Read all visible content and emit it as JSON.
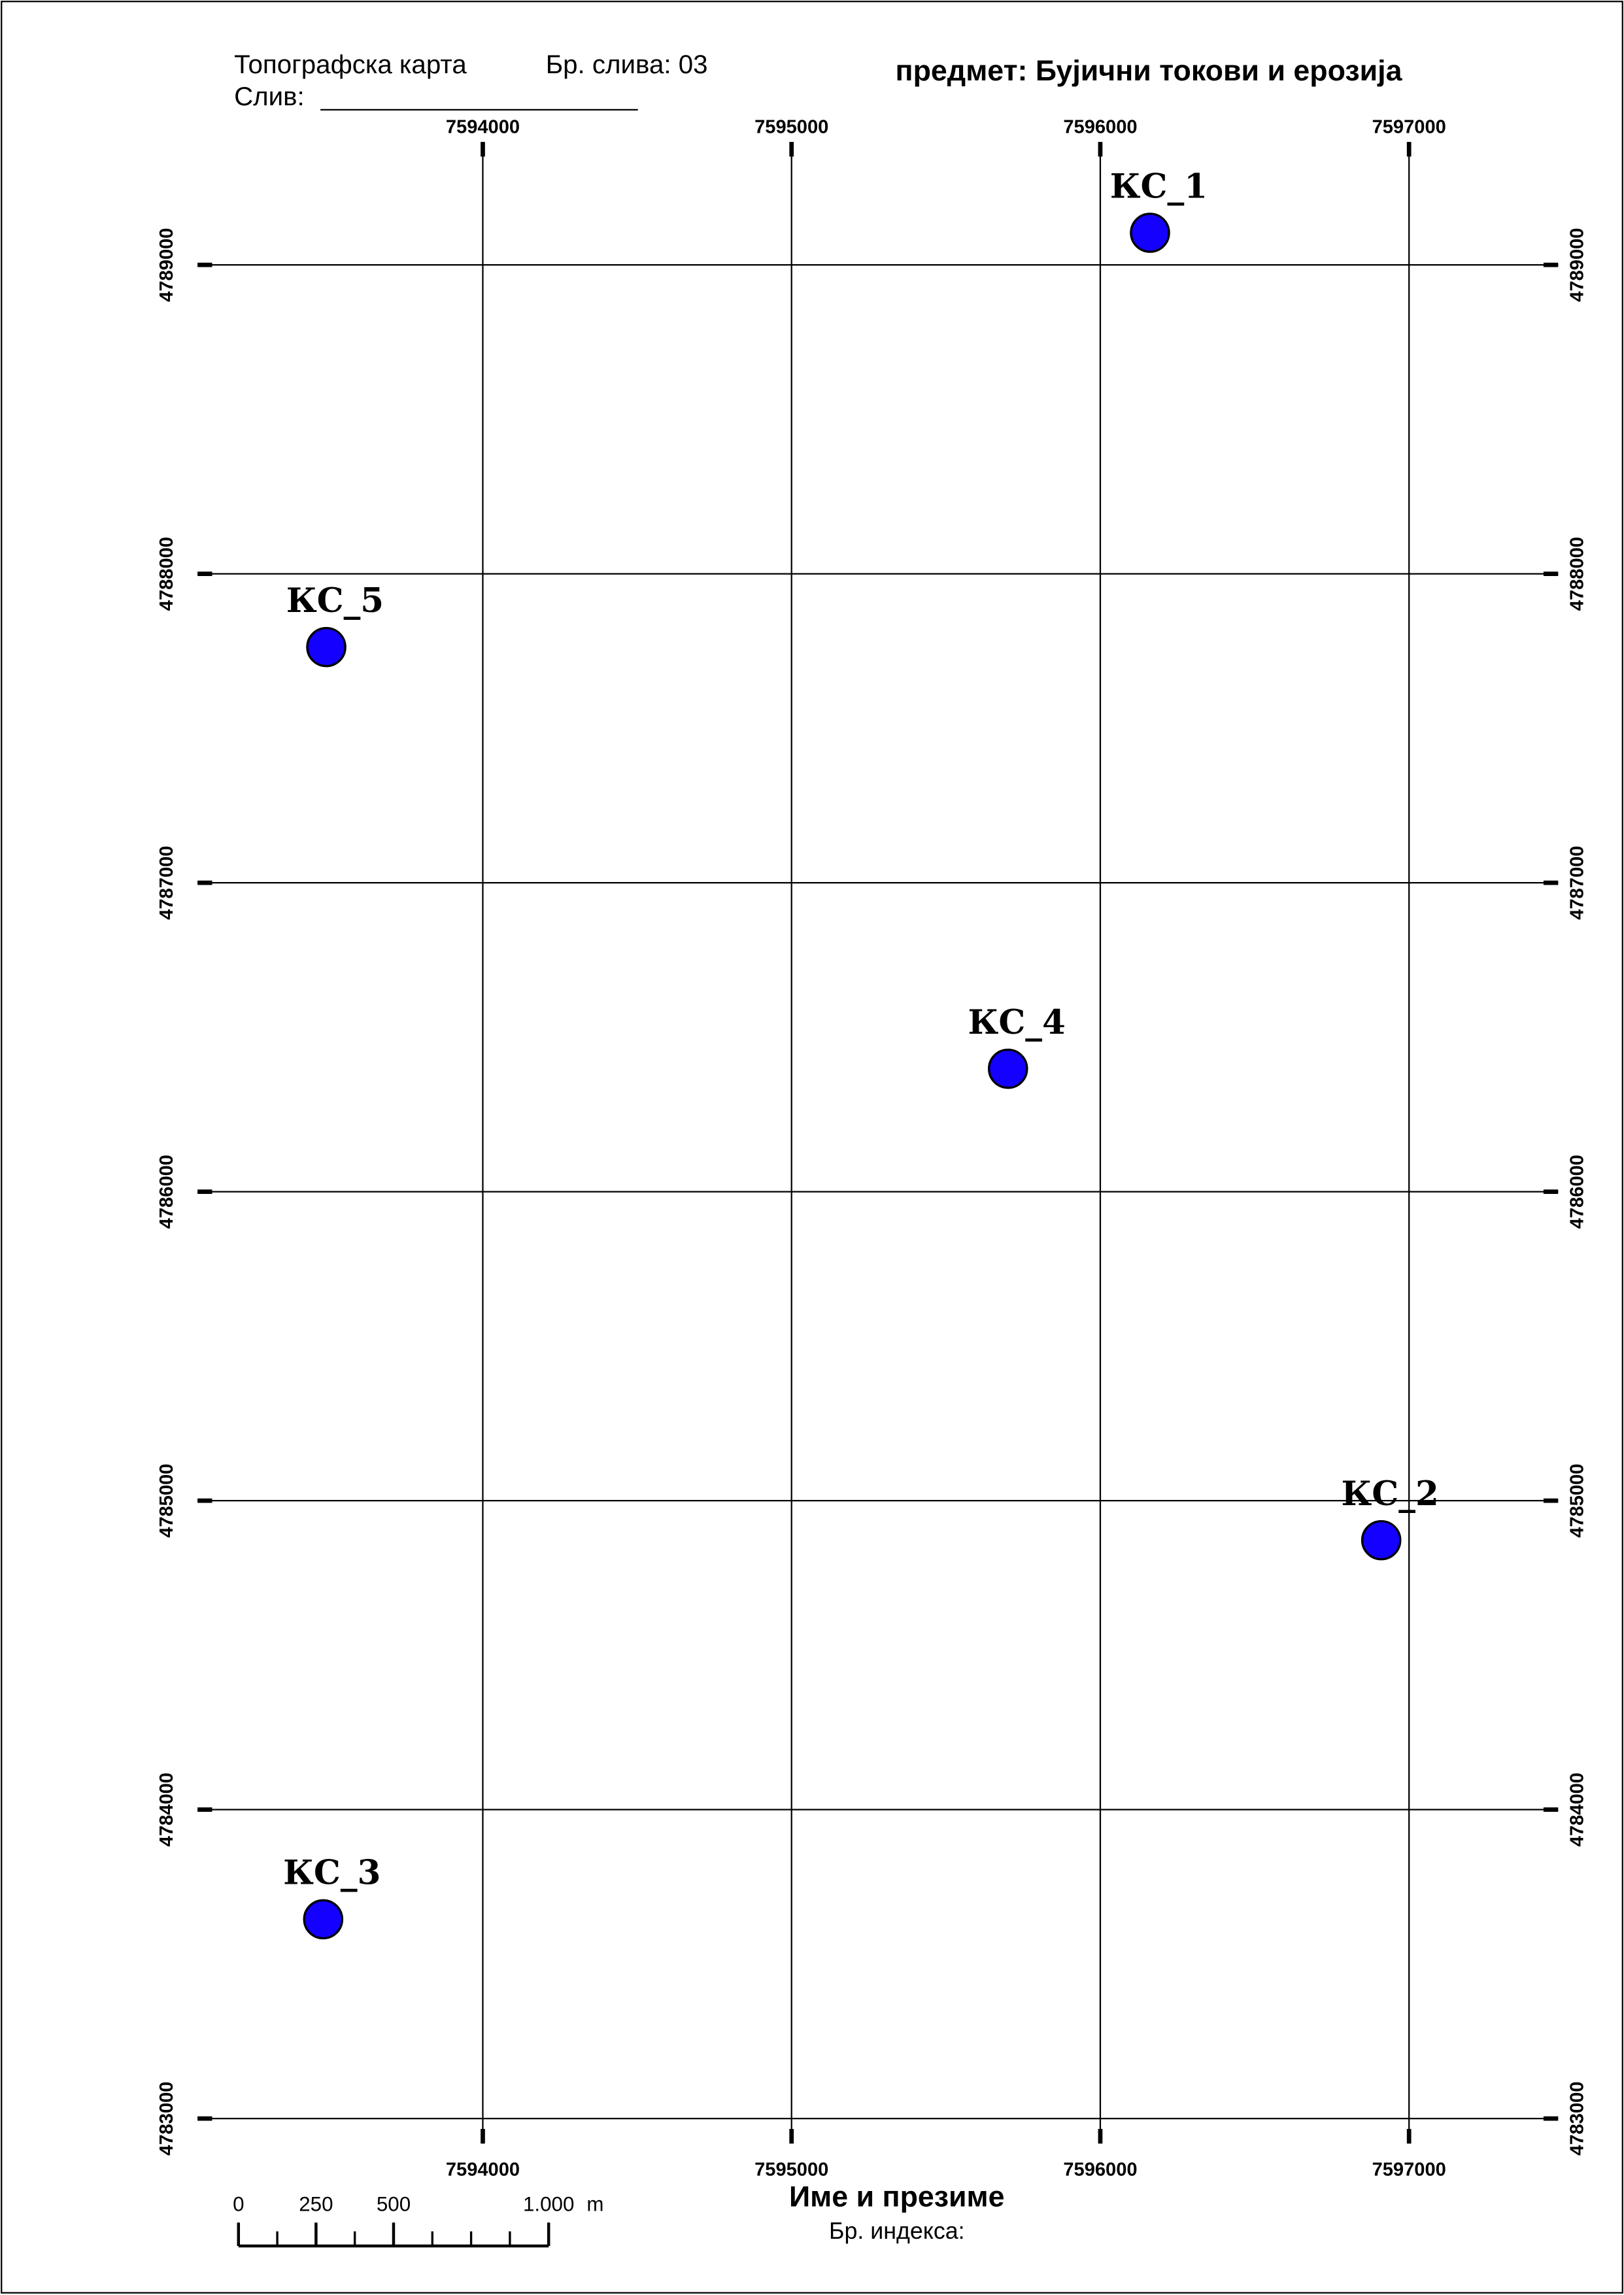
{
  "header": {
    "map_type": "Топографска карта",
    "basin_number": "Бр. слива: 03",
    "basin": "Слив:",
    "subject": "предмет: Бујични токови и ерозија"
  },
  "chart_data": {
    "type": "map",
    "xlim": [
      7593076,
      7597483
    ],
    "ylim": [
      4782919,
      4789398
    ],
    "xticks": [
      7594000,
      7595000,
      7596000,
      7597000
    ],
    "yticks": [
      4783000,
      4784000,
      4785000,
      4786000,
      4787000,
      4788000,
      4789000
    ],
    "grid": true,
    "points": {
      "color": "#1400ff",
      "labels": [
        "КС_1",
        "КС_2",
        "КС_3",
        "КС_4",
        "КС_5"
      ],
      "x": [
        7596161,
        7596910,
        7593483,
        7595701,
        7593493
      ],
      "y": [
        4789104,
        4784872,
        4783645,
        4786398,
        4787763
      ]
    }
  },
  "scale_bar": {
    "ticks": [
      0,
      250,
      500,
      {
        "value": 1000,
        "label": "1.000"
      }
    ],
    "unit": "m"
  },
  "footer": {
    "name": "Име и презиме",
    "index": "Бр. индекса:"
  }
}
